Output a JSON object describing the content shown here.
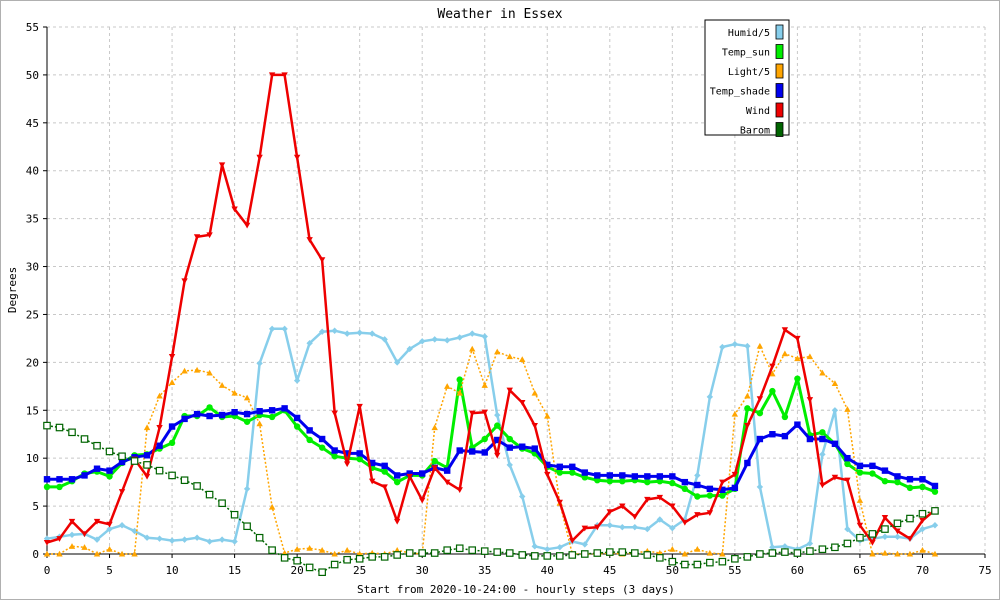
{
  "chart_data": {
    "type": "line",
    "title": "Weather in Essex",
    "xlabel": "Start from 2020-10-24:00 - hourly steps (3 days)",
    "ylabel": "Degrees",
    "xlim": [
      0,
      75
    ],
    "ylim": [
      0,
      55
    ],
    "x_ticks": [
      0,
      5,
      10,
      15,
      20,
      25,
      30,
      35,
      40,
      45,
      50,
      55,
      60,
      65,
      70,
      75
    ],
    "y_ticks": [
      0,
      5,
      10,
      15,
      20,
      25,
      30,
      35,
      40,
      45,
      50,
      55
    ],
    "grid": true,
    "legend_position": "top-right",
    "series": [
      {
        "name": "Humid/5",
        "color": "#87ceeb",
        "marker": "diamond",
        "values": [
          1.6,
          1.8,
          2.0,
          2.1,
          1.5,
          2.6,
          3.0,
          2.4,
          1.7,
          1.6,
          1.4,
          1.5,
          1.7,
          1.3,
          1.5,
          1.3,
          6.8,
          19.9,
          23.5,
          23.5,
          18.1,
          22.0,
          23.2,
          23.3,
          23.0,
          23.1,
          23.0,
          22.4,
          20.0,
          21.4,
          22.2,
          22.4,
          22.3,
          22.6,
          23.0,
          22.7,
          14.5,
          9.3,
          6.0,
          0.8,
          0.5,
          0.7,
          1.3,
          1.0,
          3.0,
          3.0,
          2.8,
          2.8,
          2.6,
          3.6,
          2.7,
          3.6,
          8.2,
          16.4,
          21.6,
          21.9,
          21.7,
          7.0,
          0.7,
          0.8,
          0.5,
          1.1,
          10.4,
          15.0,
          2.6,
          1.4,
          1.6,
          1.8,
          1.8,
          1.6,
          2.6,
          3.0
        ]
      },
      {
        "name": "Temp_sun",
        "color": "#00ee00",
        "marker": "circle",
        "values": [
          7.0,
          7.0,
          7.6,
          8.4,
          8.6,
          8.1,
          9.5,
          10.3,
          10.4,
          11.0,
          11.6,
          14.4,
          14.4,
          15.3,
          14.3,
          14.4,
          13.8,
          14.5,
          14.3,
          15.0,
          13.3,
          11.9,
          11.1,
          10.2,
          10.0,
          9.9,
          9.0,
          8.6,
          7.5,
          8.2,
          8.2,
          9.7,
          9.0,
          18.2,
          11.1,
          12.0,
          13.4,
          12.0,
          11.0,
          10.5,
          9.1,
          8.5,
          8.5,
          8.0,
          7.7,
          7.6,
          7.6,
          7.7,
          7.5,
          7.6,
          7.4,
          6.8,
          6.0,
          6.1,
          6.1,
          6.8,
          15.2,
          14.7,
          17.0,
          14.3,
          18.3,
          12.4,
          12.7,
          11.5,
          9.4,
          8.5,
          8.4,
          7.6,
          7.5,
          6.9,
          7.0,
          6.5
        ]
      },
      {
        "name": "Light/5",
        "color": "#ffa500",
        "marker": "triangle",
        "values": [
          0.0,
          0.0,
          0.8,
          0.7,
          0.0,
          0.5,
          0.0,
          0.0,
          13.2,
          16.5,
          17.9,
          19.1,
          19.2,
          18.9,
          17.6,
          16.8,
          16.3,
          13.6,
          4.9,
          0.1,
          0.5,
          0.6,
          0.4,
          0.0,
          0.4,
          0.0,
          0.1,
          0.0,
          0.4,
          0.1,
          0.0,
          13.2,
          17.5,
          16.8,
          21.4,
          17.6,
          21.1,
          20.6,
          20.3,
          16.8,
          14.4,
          5.3,
          0.0,
          0.0,
          0.0,
          0.1,
          0.0,
          0.1,
          0.3,
          0.1,
          0.5,
          0.0,
          0.5,
          0.1,
          0.0,
          14.6,
          16.5,
          21.7,
          18.8,
          20.9,
          20.4,
          20.6,
          18.9,
          17.8,
          15.1,
          5.6,
          0.0,
          0.1,
          0.0,
          0.0,
          0.4,
          0.0
        ]
      },
      {
        "name": "Temp_shade",
        "color": "#0000ee",
        "marker": "square",
        "values": [
          7.8,
          7.8,
          7.8,
          8.2,
          8.9,
          8.7,
          9.6,
          10.1,
          10.3,
          11.3,
          13.3,
          14.1,
          14.6,
          14.4,
          14.5,
          14.8,
          14.6,
          14.9,
          15.0,
          15.2,
          14.2,
          12.9,
          12.0,
          10.8,
          10.5,
          10.5,
          9.5,
          9.2,
          8.2,
          8.4,
          8.4,
          9.0,
          8.7,
          10.8,
          10.7,
          10.6,
          11.9,
          11.1,
          11.2,
          11.0,
          9.3,
          9.1,
          9.1,
          8.5,
          8.2,
          8.2,
          8.2,
          8.1,
          8.1,
          8.1,
          8.1,
          7.5,
          7.2,
          6.8,
          6.7,
          6.9,
          9.5,
          12.0,
          12.5,
          12.3,
          13.5,
          12.0,
          12.0,
          11.5,
          10.0,
          9.2,
          9.2,
          8.7,
          8.1,
          7.8,
          7.8,
          7.1
        ]
      },
      {
        "name": "Wind",
        "color": "#ee0000",
        "marker": "triangle-down",
        "values": [
          1.2,
          1.6,
          3.4,
          2.1,
          3.4,
          3.1,
          6.5,
          9.9,
          8.1,
          13.2,
          20.6,
          28.5,
          33.1,
          33.3,
          40.6,
          36.0,
          34.3,
          41.4,
          50.0,
          50.0,
          41.4,
          32.8,
          30.7,
          14.7,
          9.4,
          15.4,
          7.6,
          7.0,
          3.4,
          8.1,
          5.6,
          9.0,
          7.5,
          6.7,
          14.7,
          14.8,
          10.3,
          17.1,
          15.8,
          13.4,
          8.3,
          5.4,
          1.4,
          2.7,
          2.8,
          4.4,
          5.0,
          3.9,
          5.7,
          5.9,
          5.0,
          3.3,
          4.1,
          4.3,
          7.5,
          8.3,
          13.4,
          16.2,
          19.6,
          23.4,
          22.5,
          16.1,
          7.2,
          8.0,
          7.7,
          3.0,
          1.2,
          3.8,
          2.4,
          1.6,
          3.5,
          4.6
        ]
      },
      {
        "name": "Barom",
        "color": "#006400",
        "marker": "open-square",
        "values": [
          13.4,
          13.2,
          12.7,
          12.0,
          11.3,
          10.7,
          10.2,
          9.7,
          9.3,
          8.7,
          8.2,
          7.7,
          7.1,
          6.2,
          5.3,
          4.1,
          2.9,
          1.7,
          0.4,
          -0.4,
          -0.7,
          -1.4,
          -1.9,
          -1.1,
          -0.6,
          -0.5,
          -0.3,
          -0.3,
          -0.1,
          0.1,
          0.1,
          0.1,
          0.4,
          0.6,
          0.4,
          0.3,
          0.2,
          0.1,
          -0.1,
          -0.2,
          -0.2,
          -0.2,
          -0.1,
          0.0,
          0.1,
          0.2,
          0.2,
          0.1,
          -0.1,
          -0.4,
          -0.8,
          -1.1,
          -1.1,
          -0.9,
          -0.8,
          -0.5,
          -0.3,
          0.0,
          0.1,
          0.2,
          0.1,
          0.3,
          0.5,
          0.7,
          1.1,
          1.7,
          2.1,
          2.6,
          3.2,
          3.7,
          4.2,
          4.5
        ]
      }
    ]
  }
}
